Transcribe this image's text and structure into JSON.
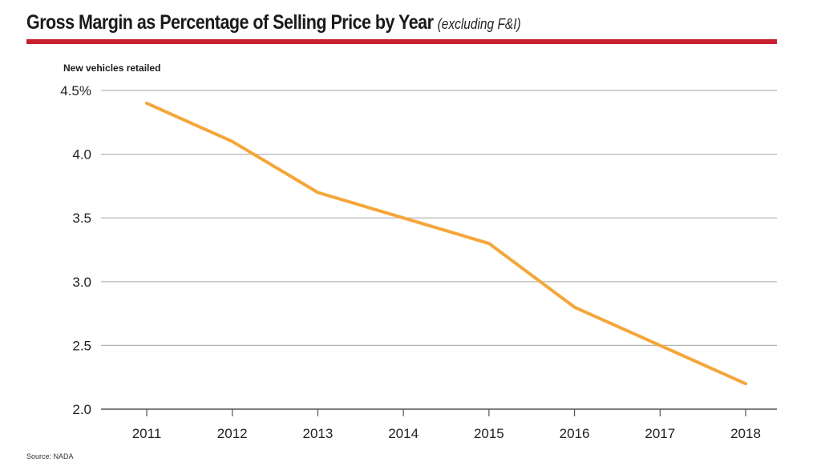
{
  "header": {
    "title": "Gross Margin as Percentage of Selling Price by Year",
    "subtitle": "(excluding F&I)"
  },
  "footer": {
    "source": "Source: NADA"
  },
  "colors": {
    "line": "#f5a63a",
    "rule": "#c8202f",
    "grid": "#b3b3b3",
    "axis": "#555555"
  },
  "chart_data": {
    "type": "line",
    "title": "Gross Margin as Percentage of Selling Price by Year",
    "subtitle": "(excluding F&I)",
    "ylabel": "New vehicles retailed",
    "xlabel": "",
    "categories": [
      "2011",
      "2012",
      "2013",
      "2014",
      "2015",
      "2016",
      "2017",
      "2018"
    ],
    "values": [
      4.4,
      4.1,
      3.7,
      3.5,
      3.3,
      2.8,
      2.5,
      2.2
    ],
    "ylim": [
      2.0,
      4.5
    ],
    "yticks": [
      4.5,
      4.0,
      3.5,
      3.0,
      2.5,
      2.0
    ],
    "ytick_labels": [
      "4.5%",
      "4.0",
      "3.5",
      "3.0",
      "2.5",
      "2.0"
    ],
    "grid": true,
    "legend": "none"
  }
}
